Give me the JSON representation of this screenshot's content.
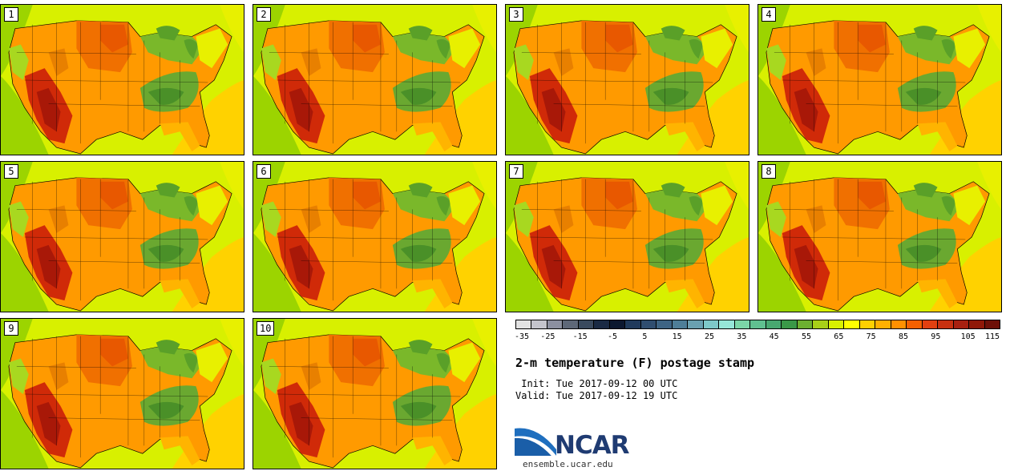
{
  "members": [
    {
      "label": "1"
    },
    {
      "label": "2"
    },
    {
      "label": "3"
    },
    {
      "label": "4"
    },
    {
      "label": "5"
    },
    {
      "label": "6"
    },
    {
      "label": "7"
    },
    {
      "label": "8"
    },
    {
      "label": "9"
    },
    {
      "label": "10"
    }
  ],
  "colorbar": {
    "unit": "F",
    "tick_labels": [
      "-35",
      "-25",
      "-15",
      "-5",
      "5",
      "15",
      "25",
      "35",
      "45",
      "55",
      "65",
      "75",
      "85",
      "95",
      "105",
      "115"
    ],
    "colors": [
      "#e2e2e2",
      "#c4c4cc",
      "#8c90a0",
      "#5e6878",
      "#3a4a5e",
      "#1a2a44",
      "#0c1830",
      "#203a5c",
      "#304e70",
      "#3e6484",
      "#4e7e98",
      "#6aa0b0",
      "#7ec8c8",
      "#96e6d8",
      "#7cd6a8",
      "#60c090",
      "#48a870",
      "#3a9848",
      "#6cb030",
      "#a8d018",
      "#d8f000",
      "#ffff00",
      "#ffd000",
      "#ffb000",
      "#ff9000",
      "#f56000",
      "#e24010",
      "#c83010",
      "#a82010",
      "#901808",
      "#6e1008"
    ]
  },
  "title": "2-m temperature (F) postage stamp",
  "init": " Init: Tue 2017-09-12 00 UTC",
  "valid": "Valid: Tue 2017-09-12 19 UTC",
  "logo_text": "NCAR",
  "url": "ensemble.ucar.edu",
  "map_colors": {
    "ocean_west": "#9cd400",
    "ocean_east": "#ffd200",
    "gulf": "#ffd000",
    "land_base": "#ff9a00",
    "north_plains": "#f07000",
    "southwest_hot": "#d02a08",
    "southwest_core": "#a81808",
    "mountains": "#a8d820",
    "canada": "#d8f000",
    "great_lakes": "#7ab82a",
    "appalachian": "#6aa830",
    "northeast": "#e8f000",
    "southeast": "#ffb400"
  }
}
